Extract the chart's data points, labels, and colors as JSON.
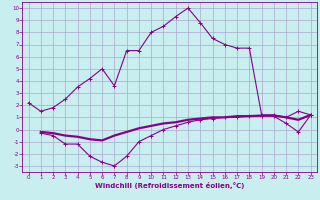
{
  "xlabel": "Windchill (Refroidissement éolien,°C)",
  "xlim": [
    -0.5,
    23.5
  ],
  "ylim": [
    -3.5,
    10.5
  ],
  "xticks": [
    0,
    1,
    2,
    3,
    4,
    5,
    6,
    7,
    8,
    9,
    10,
    11,
    12,
    13,
    14,
    15,
    16,
    17,
    18,
    19,
    20,
    21,
    22,
    23
  ],
  "yticks": [
    -3,
    -2,
    -1,
    0,
    1,
    2,
    3,
    4,
    5,
    6,
    7,
    8,
    9,
    10
  ],
  "background_color": "#c8eef0",
  "line_color": "#880088",
  "grid_color": "#aaaacc",
  "line1_x": [
    0,
    1,
    2,
    3,
    4,
    5,
    6,
    7,
    8,
    9,
    10,
    11,
    12,
    13,
    14,
    15,
    16,
    17,
    18,
    19,
    20,
    21,
    22,
    23
  ],
  "line1_y": [
    2.2,
    1.5,
    1.8,
    2.5,
    3.5,
    4.2,
    5.0,
    3.6,
    6.5,
    6.5,
    8.0,
    8.5,
    9.3,
    10.0,
    8.8,
    7.5,
    7.0,
    6.7,
    6.7,
    1.2,
    1.2,
    1.0,
    1.5,
    1.2
  ],
  "line2_x": [
    1,
    2,
    3,
    4,
    5,
    6,
    7,
    8,
    9,
    10,
    11,
    12,
    13,
    14,
    15,
    16,
    17,
    18,
    19,
    20,
    21,
    22,
    23
  ],
  "line2_y": [
    -0.3,
    -0.5,
    -1.2,
    -1.2,
    -2.2,
    -2.7,
    -3.0,
    -2.2,
    -1.0,
    -0.5,
    0.0,
    0.3,
    0.6,
    0.8,
    0.9,
    1.0,
    1.0,
    1.1,
    1.1,
    1.1,
    0.5,
    -0.2,
    1.2
  ],
  "line3_x": [
    1,
    2,
    3,
    4,
    5,
    6,
    7,
    8,
    9,
    10,
    11,
    12,
    13,
    14,
    15,
    16,
    17,
    18,
    19,
    20,
    21,
    22,
    23
  ],
  "line3_y": [
    -0.2,
    -0.3,
    -0.5,
    -0.6,
    -0.8,
    -0.9,
    -0.5,
    -0.2,
    0.1,
    0.3,
    0.5,
    0.6,
    0.8,
    0.9,
    1.0,
    1.0,
    1.1,
    1.1,
    1.15,
    1.15,
    1.0,
    0.8,
    1.2
  ]
}
